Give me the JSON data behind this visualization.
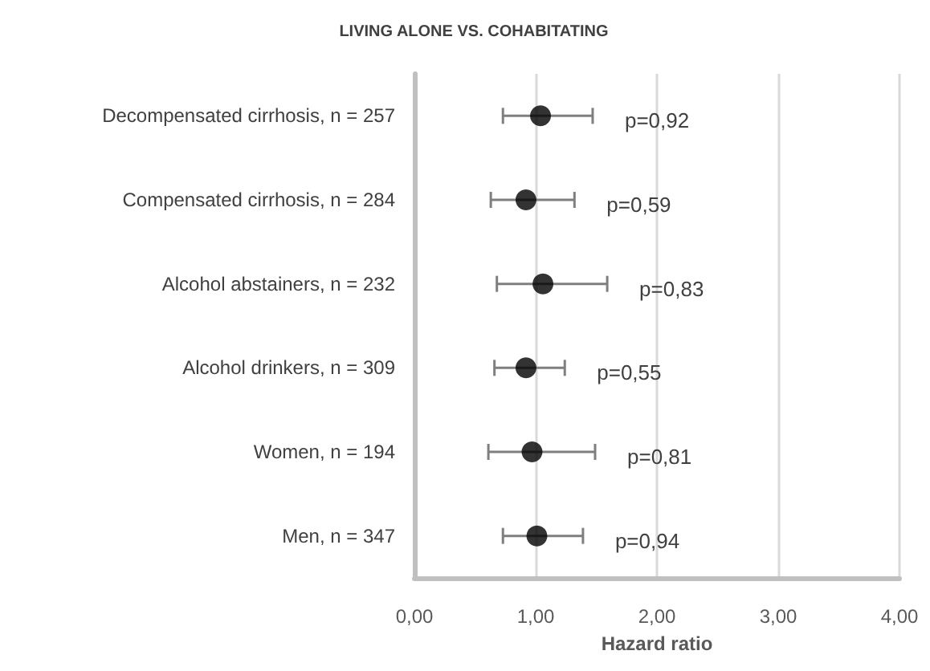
{
  "chart_data": {
    "type": "scatter",
    "orientation": "horizontal",
    "title": "LIVING ALONE VS. COHABITATING",
    "xlabel": "Hazard ratio",
    "categories": [
      "Decompensated cirrhosis, n = 257",
      "Compensated cirrhosis, n = 284",
      "Alcohol abstainers, n = 232",
      "Alcohol drinkers, n = 309",
      "Women, n = 194",
      "Men, n = 347"
    ],
    "series": [
      {
        "color": "#000000",
        "values": [
          1.04,
          0.92,
          1.06,
          0.92,
          0.97,
          1.01
        ],
        "errors": [
          [
            0.73,
            1.47
          ],
          [
            0.63,
            1.32
          ],
          [
            0.68,
            1.59
          ],
          [
            0.66,
            1.24
          ],
          [
            0.61,
            1.49
          ],
          [
            0.73,
            1.39
          ]
        ]
      }
    ],
    "xlim": [
      0,
      4
    ],
    "xticks": [
      {
        "value": 0,
        "label": "0,00"
      },
      {
        "value": 1,
        "label": "1,00"
      },
      {
        "value": 2,
        "label": "2,00"
      },
      {
        "value": 3,
        "label": "3,00"
      },
      {
        "value": 4,
        "label": "4,00"
      }
    ],
    "grid": "x",
    "marker": "circle",
    "annotations": [
      "p=0,92",
      "p=0,59",
      "p=0,83",
      "p=0,55",
      "p=0,81",
      "p=0,94"
    ]
  }
}
